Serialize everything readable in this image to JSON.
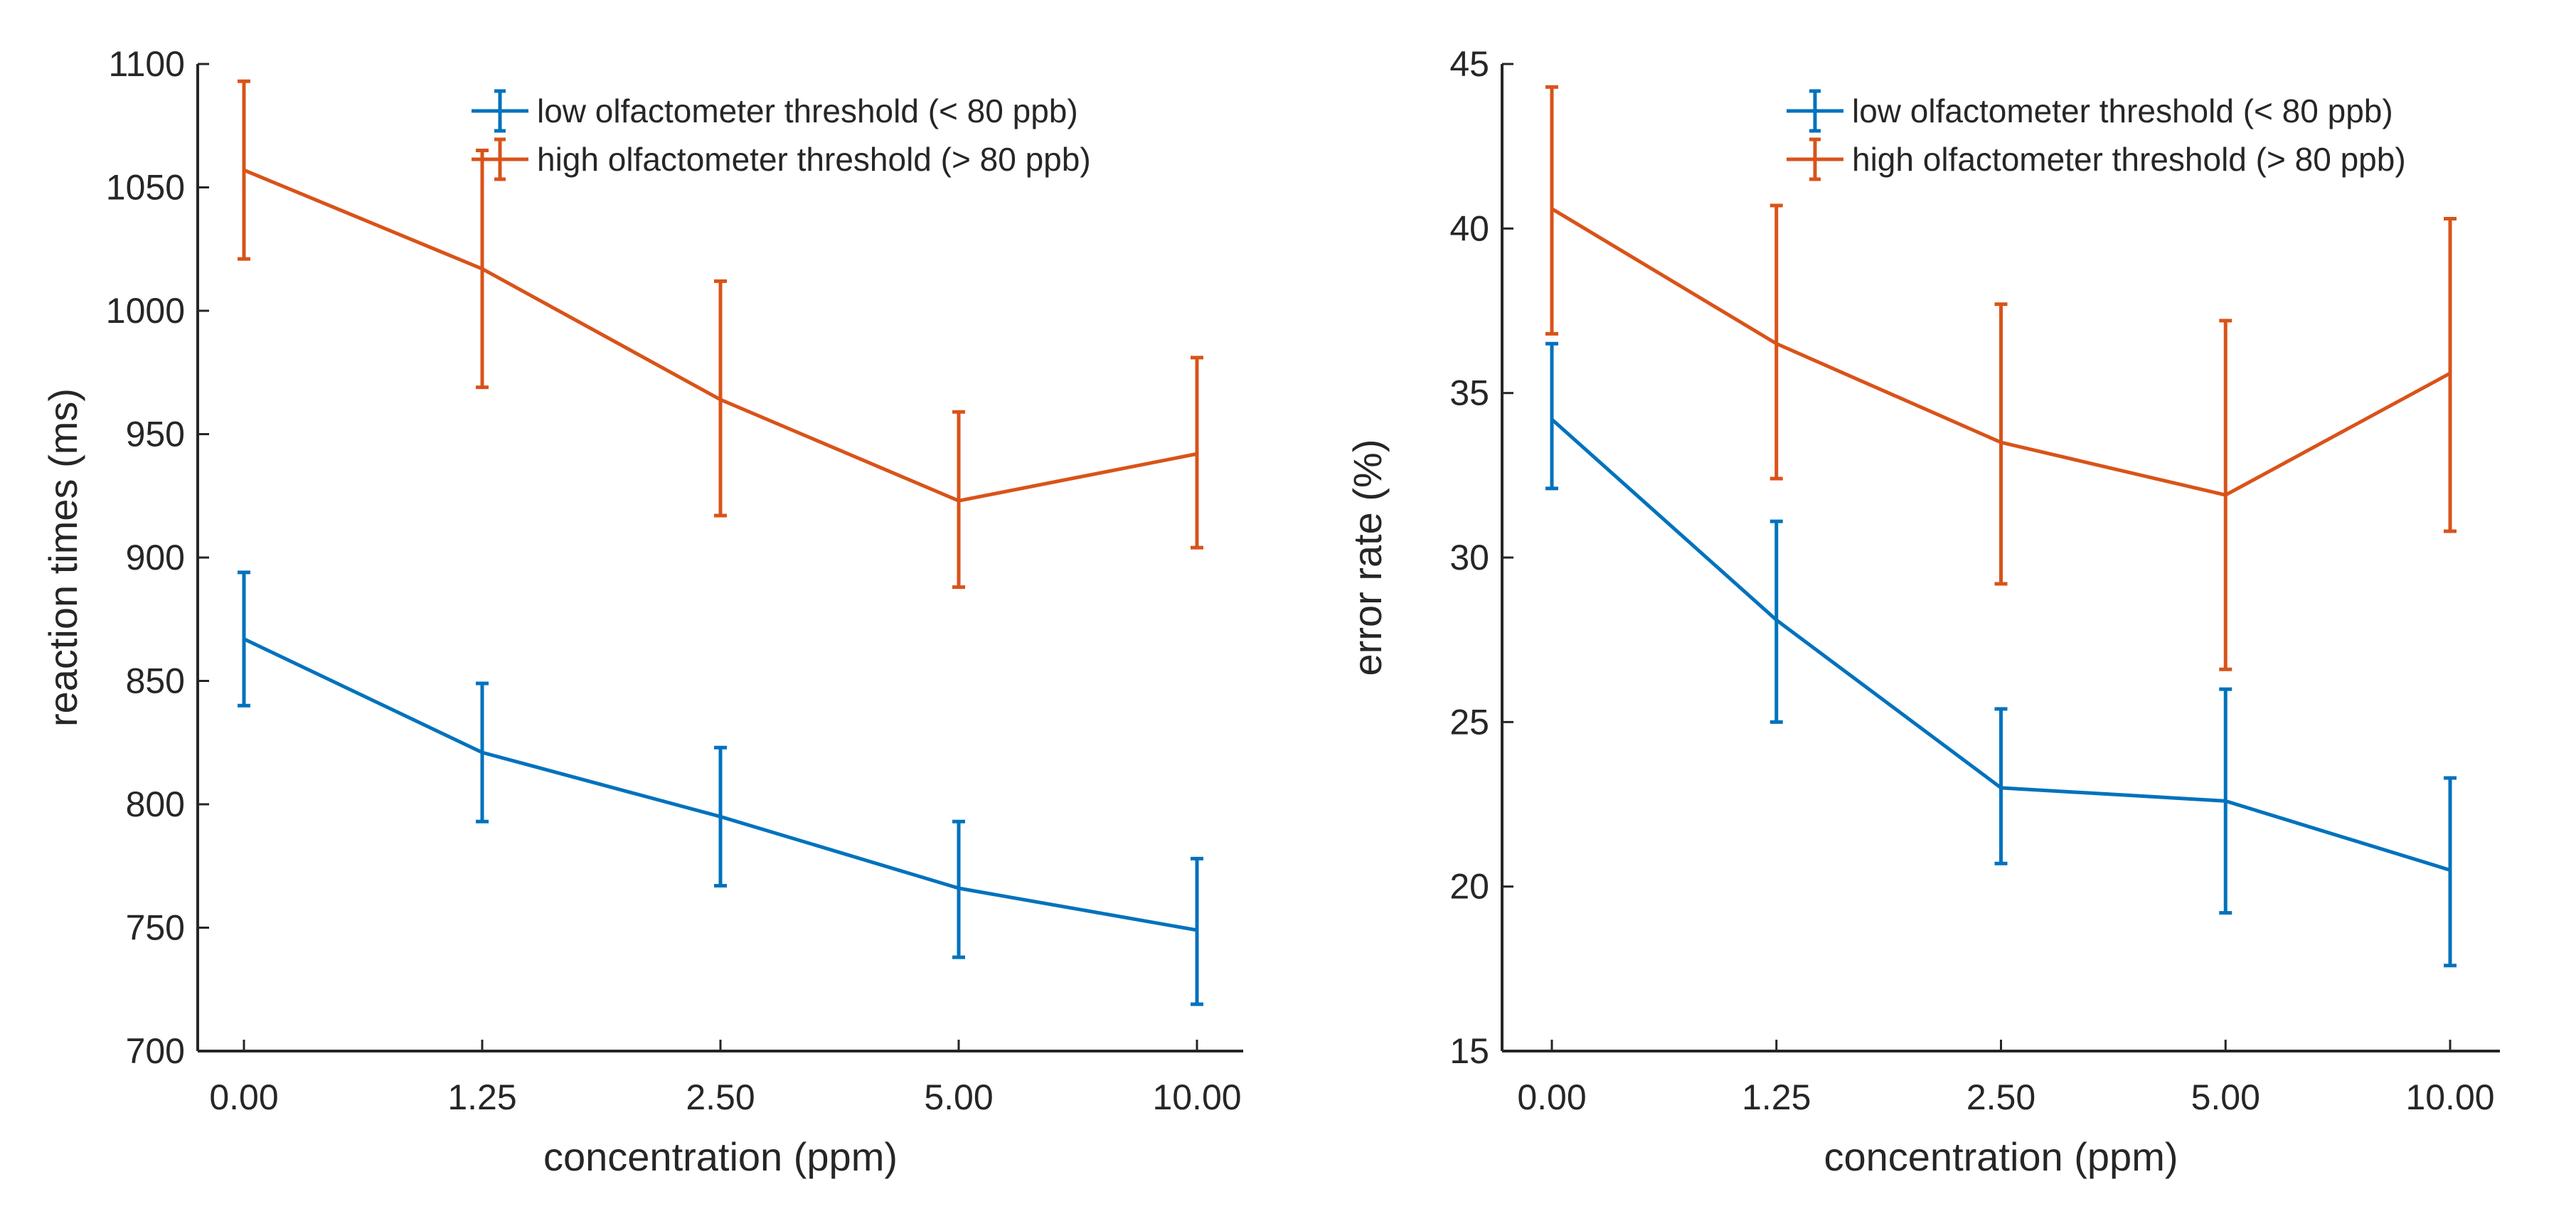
{
  "chart_data": [
    {
      "type": "line",
      "title": "",
      "xlabel": "concentration (ppm)",
      "ylabel": "reaction times (ms)",
      "categories": [
        "0.00",
        "1.25",
        "2.50",
        "5.00",
        "10.00"
      ],
      "ylim": [
        700,
        1100
      ],
      "yticks": [
        "700",
        "750",
        "800",
        "850",
        "900",
        "950",
        "1000",
        "1050",
        "1100"
      ],
      "grid": false,
      "legend_position": "top-right",
      "series": [
        {
          "name": "low olfactometer threshold (< 80 ppb)",
          "color": "#0072BD",
          "values": [
            867,
            821,
            795,
            766,
            749
          ],
          "error_low": [
            840,
            793,
            767,
            738,
            719
          ],
          "error_high": [
            894,
            849,
            823,
            793,
            778
          ]
        },
        {
          "name": "high olfactometer threshold (> 80 ppb)",
          "color": "#D95319",
          "values": [
            1057,
            1017,
            964,
            923,
            942
          ],
          "error_low": [
            1021,
            969,
            917,
            888,
            904
          ],
          "error_high": [
            1093,
            1065,
            1012,
            959,
            981
          ]
        }
      ]
    },
    {
      "type": "line",
      "title": "",
      "xlabel": "concentration (ppm)",
      "ylabel": "error rate (%)",
      "categories": [
        "0.00",
        "1.25",
        "2.50",
        "5.00",
        "10.00"
      ],
      "ylim": [
        15,
        45
      ],
      "yticks": [
        "15",
        "20",
        "25",
        "30",
        "35",
        "40",
        "45"
      ],
      "grid": false,
      "legend_position": "top-right",
      "series": [
        {
          "name": "low olfactometer threshold (< 80 ppb)",
          "color": "#0072BD",
          "values": [
            34.2,
            28.1,
            23.0,
            22.6,
            20.5
          ],
          "error_low": [
            32.1,
            25.0,
            20.7,
            19.2,
            17.6
          ],
          "error_high": [
            36.5,
            31.1,
            25.4,
            26.0,
            23.3
          ]
        },
        {
          "name": "high olfactometer threshold (> 80 ppb)",
          "color": "#D95319",
          "values": [
            40.6,
            36.5,
            33.5,
            31.9,
            35.6
          ],
          "error_low": [
            36.8,
            32.4,
            29.2,
            26.6,
            30.8
          ],
          "error_high": [
            44.3,
            40.7,
            37.7,
            37.2,
            40.3
          ]
        }
      ]
    }
  ]
}
